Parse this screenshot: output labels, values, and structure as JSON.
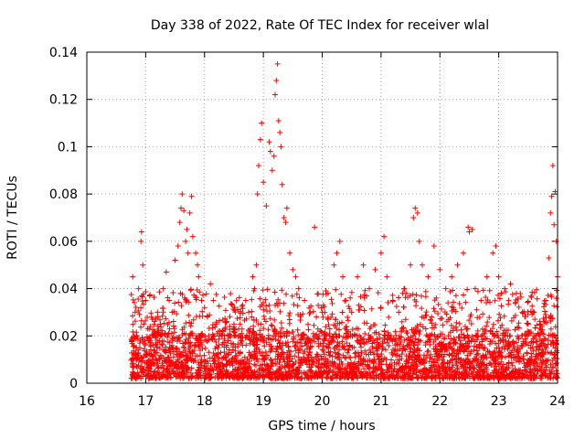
{
  "chart_data": {
    "type": "scatter",
    "title": "Day 338 of 2022, Rate Of TEC Index for receiver wlal",
    "xlabel": "GPS time / hours",
    "ylabel": "ROTI / TECUs",
    "xlim": [
      16,
      24
    ],
    "ylim": [
      0,
      0.14
    ],
    "x_ticks": [
      16,
      17,
      18,
      19,
      20,
      21,
      22,
      23,
      24
    ],
    "x_tick_labels": [
      "16",
      "17",
      "18",
      "19",
      "20",
      "21",
      "22",
      "23",
      "24"
    ],
    "y_ticks": [
      0,
      0.02,
      0.04,
      0.06,
      0.08,
      0.1,
      0.12,
      0.14
    ],
    "y_tick_labels": [
      "0",
      "0.02",
      "0.04",
      "0.06",
      "0.08",
      "0.1",
      "0.12",
      "0.14"
    ],
    "grid": true,
    "marker": "+",
    "color": "#ff0000",
    "series": [
      {
        "name": "ROTI",
        "points": [
          [
            16.78,
            0.045
          ],
          [
            16.8,
            0.012
          ],
          [
            16.82,
            0.03
          ],
          [
            16.85,
            0.02
          ],
          [
            16.88,
            0.04
          ],
          [
            16.9,
            0.015
          ],
          [
            16.92,
            0.06
          ],
          [
            16.93,
            0.064
          ],
          [
            16.95,
            0.05
          ],
          [
            16.97,
            0.025
          ],
          [
            17.0,
            0.035
          ],
          [
            17.05,
            0.018
          ],
          [
            17.1,
            0.028
          ],
          [
            17.15,
            0.022
          ],
          [
            17.2,
            0.03
          ],
          [
            17.25,
            0.025
          ],
          [
            17.3,
            0.04
          ],
          [
            17.35,
            0.047
          ],
          [
            17.4,
            0.035
          ],
          [
            17.45,
            0.03
          ],
          [
            17.5,
            0.052
          ],
          [
            17.55,
            0.058
          ],
          [
            17.58,
            0.068
          ],
          [
            17.6,
            0.074
          ],
          [
            17.62,
            0.08
          ],
          [
            17.65,
            0.073
          ],
          [
            17.68,
            0.06
          ],
          [
            17.7,
            0.065
          ],
          [
            17.72,
            0.055
          ],
          [
            17.75,
            0.072
          ],
          [
            17.78,
            0.079
          ],
          [
            17.8,
            0.062
          ],
          [
            17.85,
            0.055
          ],
          [
            17.88,
            0.05
          ],
          [
            17.9,
            0.045
          ],
          [
            17.95,
            0.035
          ],
          [
            18.0,
            0.032
          ],
          [
            18.05,
            0.028
          ],
          [
            18.1,
            0.042
          ],
          [
            18.15,
            0.035
          ],
          [
            18.2,
            0.025
          ],
          [
            18.3,
            0.022
          ],
          [
            18.4,
            0.018
          ],
          [
            18.5,
            0.025
          ],
          [
            18.6,
            0.02
          ],
          [
            18.7,
            0.035
          ],
          [
            18.75,
            0.03
          ],
          [
            18.8,
            0.028
          ],
          [
            18.82,
            0.045
          ],
          [
            18.85,
            0.04
          ],
          [
            18.88,
            0.05
          ],
          [
            18.9,
            0.08
          ],
          [
            18.92,
            0.092
          ],
          [
            18.95,
            0.103
          ],
          [
            18.97,
            0.11
          ],
          [
            19.0,
            0.085
          ],
          [
            19.05,
            0.075
          ],
          [
            19.1,
            0.102
          ],
          [
            19.12,
            0.098
          ],
          [
            19.15,
            0.09
          ],
          [
            19.18,
            0.096
          ],
          [
            19.2,
            0.122
          ],
          [
            19.22,
            0.128
          ],
          [
            19.24,
            0.135
          ],
          [
            19.26,
            0.111
          ],
          [
            19.28,
            0.106
          ],
          [
            19.3,
            0.1
          ],
          [
            19.32,
            0.084
          ],
          [
            19.35,
            0.07
          ],
          [
            19.38,
            0.068
          ],
          [
            19.4,
            0.074
          ],
          [
            19.45,
            0.055
          ],
          [
            19.5,
            0.048
          ],
          [
            19.55,
            0.045
          ],
          [
            19.6,
            0.04
          ],
          [
            19.7,
            0.035
          ],
          [
            19.8,
            0.03
          ],
          [
            19.87,
            0.066
          ],
          [
            19.9,
            0.028
          ],
          [
            20.0,
            0.03
          ],
          [
            20.1,
            0.038
          ],
          [
            20.2,
            0.05
          ],
          [
            20.25,
            0.055
          ],
          [
            20.3,
            0.06
          ],
          [
            20.35,
            0.045
          ],
          [
            20.4,
            0.035
          ],
          [
            20.5,
            0.03
          ],
          [
            20.6,
            0.045
          ],
          [
            20.7,
            0.05
          ],
          [
            20.8,
            0.04
          ],
          [
            20.9,
            0.048
          ],
          [
            21.0,
            0.055
          ],
          [
            21.05,
            0.062
          ],
          [
            21.1,
            0.045
          ],
          [
            21.2,
            0.035
          ],
          [
            21.3,
            0.03
          ],
          [
            21.4,
            0.04
          ],
          [
            21.5,
            0.05
          ],
          [
            21.55,
            0.07
          ],
          [
            21.58,
            0.074
          ],
          [
            21.62,
            0.072
          ],
          [
            21.65,
            0.06
          ],
          [
            21.7,
            0.05
          ],
          [
            21.8,
            0.045
          ],
          [
            21.9,
            0.058
          ],
          [
            22.0,
            0.048
          ],
          [
            22.1,
            0.04
          ],
          [
            22.2,
            0.045
          ],
          [
            22.3,
            0.05
          ],
          [
            22.4,
            0.055
          ],
          [
            22.48,
            0.066
          ],
          [
            22.5,
            0.064
          ],
          [
            22.55,
            0.065
          ],
          [
            22.6,
            0.04
          ],
          [
            22.7,
            0.035
          ],
          [
            22.8,
            0.045
          ],
          [
            22.9,
            0.055
          ],
          [
            22.95,
            0.058
          ],
          [
            23.0,
            0.045
          ],
          [
            23.1,
            0.04
          ],
          [
            23.2,
            0.042
          ],
          [
            23.3,
            0.038
          ],
          [
            23.4,
            0.03
          ],
          [
            23.5,
            0.025
          ],
          [
            23.6,
            0.03
          ],
          [
            23.7,
            0.025
          ],
          [
            23.8,
            0.035
          ],
          [
            23.85,
            0.053
          ],
          [
            23.88,
            0.072
          ],
          [
            23.9,
            0.079
          ],
          [
            23.92,
            0.092
          ],
          [
            23.94,
            0.067
          ],
          [
            23.96,
            0.081
          ],
          [
            23.98,
            0.06
          ],
          [
            24.0,
            0.045
          ],
          [
            17.3,
            0.005
          ],
          [
            18.3,
            0.006
          ],
          [
            19.3,
            0.005
          ],
          [
            20.3,
            0.006
          ],
          [
            21.3,
            0.005
          ],
          [
            22.3,
            0.006
          ],
          [
            23.3,
            0.005
          ]
        ],
        "dense_band": {
          "note": "Dense cluster of ROTI values covering 16.75-24 h, concentrated between 0.002 and 0.03 TECU/s.",
          "x_range": [
            16.75,
            24.0
          ],
          "y_core": [
            0.002,
            0.02
          ],
          "y_upper": [
            0.02,
            0.04
          ]
        }
      }
    ]
  }
}
